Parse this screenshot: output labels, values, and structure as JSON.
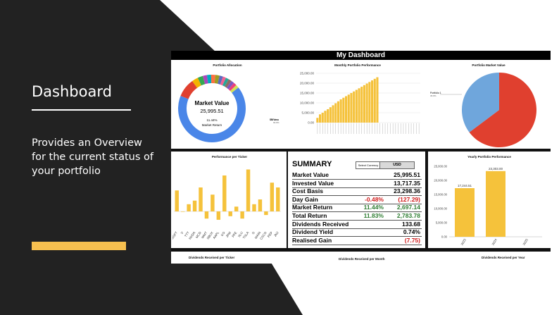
{
  "slide": {
    "title": "Dashboard",
    "description": "Provides an Overview for the current status of your portfolio"
  },
  "dashboard": {
    "header": "My Dashboard",
    "allocation": {
      "title": "Portfolio Allocation",
      "center_label": "Market Value",
      "center_value": "25,995.51",
      "center_pct": "11.44%",
      "center_sub": "Market Return",
      "slice_label": "SB/Vanu",
      "slice_pct": "66.8%"
    },
    "monthly": {
      "title": "Monthly Portfolio Performance",
      "y_ticks": [
        "25,000.00",
        "20,000.00",
        "15,000.00",
        "10,000.00",
        "5,000.00",
        "0.00"
      ]
    },
    "market_value_pie": {
      "title": "Portfolio Market Value",
      "label": "Portfolio 1",
      "label_pct": "36.8%"
    },
    "ticker": {
      "title": "Performance per Ticker",
      "labels": [
        "MSFT",
        "V",
        "TTT",
        "NVDA",
        "MCD",
        "WMT",
        "SBUX",
        "AAPL",
        "KO",
        "JPM",
        "PFE",
        "XLU",
        "TSLA",
        "O",
        "MAIN",
        "CSCO",
        "PEP",
        "JNJ"
      ]
    },
    "summary": {
      "title": "SUMMARY",
      "currency_label": "Select Currency",
      "currency": "USD",
      "rows": [
        {
          "label": "Market Value",
          "pct": "",
          "value": "25,995.51"
        },
        {
          "label": "Invested Value",
          "pct": "",
          "value": "13,717.35"
        },
        {
          "label": "Cost Basis",
          "pct": "",
          "value": "23,298.36"
        },
        {
          "label": "Day Gain",
          "pct": "-0.48%",
          "value": "(127.29)"
        },
        {
          "label": "Market Return",
          "pct": "11.44%",
          "value": "2,697.14"
        },
        {
          "label": "Total Return",
          "pct": "11.83%",
          "value": "2,783.78"
        },
        {
          "label": "Dividends Received",
          "pct": "",
          "value": "133.68"
        },
        {
          "label": "Dividend Yield",
          "pct": "",
          "value": "0.74%"
        },
        {
          "label": "Realised Gain",
          "pct": "",
          "value": "(7.75)"
        }
      ]
    },
    "yearly": {
      "title": "Yearly Portfolio Performance",
      "y_ticks": [
        "25,000.00",
        "20,000.00",
        "15,000.00",
        "10,000.00",
        "5,000.00",
        "0.00"
      ],
      "years": [
        "2023",
        "2024",
        "2025"
      ],
      "bar_labels": [
        "17,244.51",
        "23,303.00"
      ]
    },
    "bottom": {
      "div_ticker": "Dividends Received per Ticker",
      "div_month": "Dividends Received per Month",
      "div_year": "Dividends Received per Year"
    }
  },
  "chart_data": [
    {
      "type": "bar",
      "title": "Yearly Portfolio Performance",
      "categories": [
        "2023",
        "2024",
        "2025"
      ],
      "values": [
        17244.51,
        23303.0,
        0
      ],
      "ylim": [
        0,
        25000
      ]
    },
    {
      "type": "bar",
      "title": "Monthly Portfolio Performance",
      "values": [
        2400,
        4200,
        5000,
        6000,
        6800,
        7800,
        8800,
        9800,
        10800,
        11800,
        12600,
        13400,
        14200,
        15000,
        15800,
        16600,
        17400,
        18200,
        19000,
        19800,
        20600,
        21400,
        22200,
        23000
      ],
      "ylim": [
        0,
        25000
      ]
    },
    {
      "type": "bar",
      "title": "Performance per Ticker",
      "values": [
        35,
        0,
        12,
        18,
        40,
        -12,
        28,
        -14,
        60,
        -8,
        8,
        -12,
        70,
        12,
        20,
        -6,
        48,
        40
      ]
    }
  ],
  "colors": {
    "dark": "#222222",
    "accent": "#f7c04f",
    "bar": "#f5c23b",
    "pie_blue": "#6fa6dc",
    "pie_red": "#e0402f"
  }
}
